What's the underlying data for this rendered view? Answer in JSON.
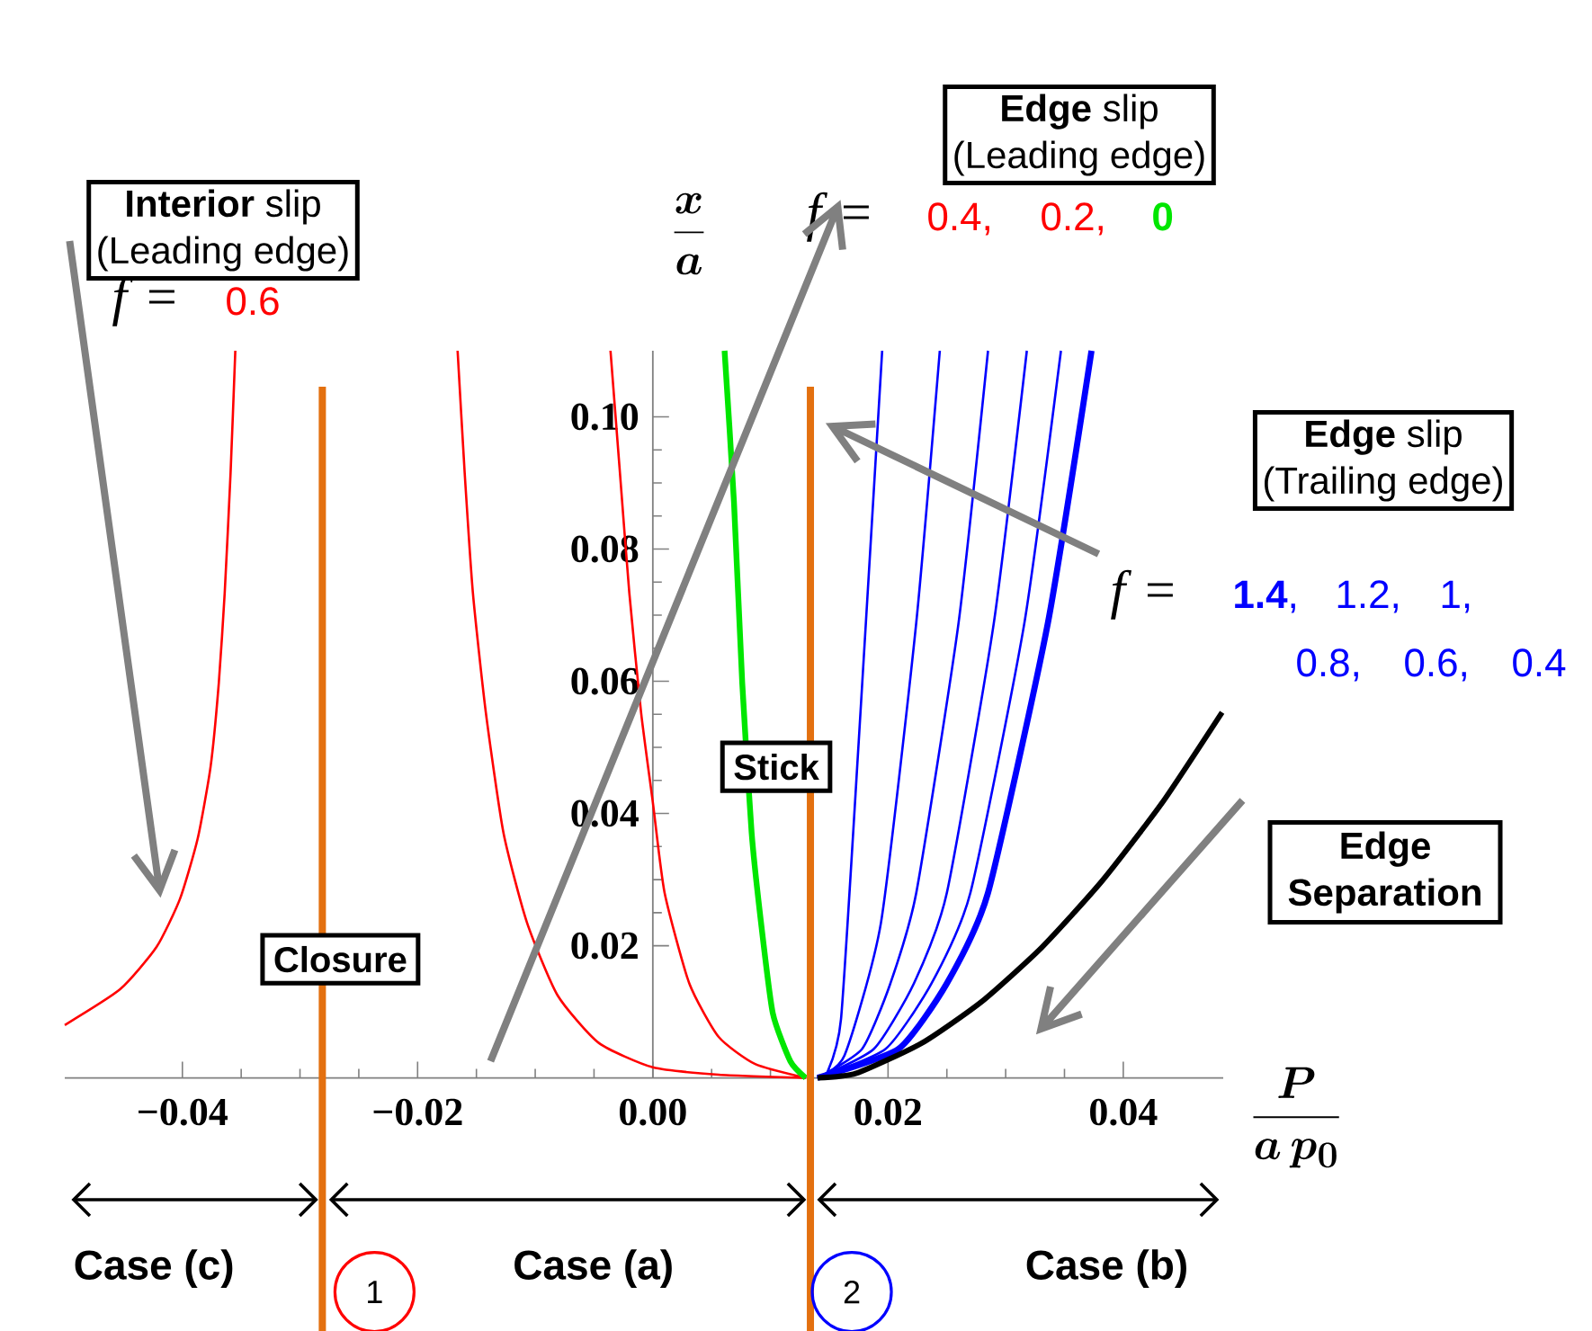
{
  "chart_data": {
    "type": "line",
    "marker": "none",
    "xlabel": "\\frac{\\boldsymbol{P}}{\\boldsymbol{a\\,p_0}}",
    "ylabel": "\\frac{\\boldsymbol{x}}{\\boldsymbol{a}}",
    "xlim": [
      -0.05,
      0.0485
    ],
    "ylim": [
      0,
      0.11
    ],
    "xticks": [
      {
        "value": -0.04,
        "label": "−0.04"
      },
      {
        "value": -0.02,
        "label": "−0.02"
      },
      {
        "value": 0,
        "label": "0.00"
      },
      {
        "value": 0.02,
        "label": "0.02"
      },
      {
        "value": 0.04,
        "label": "0.04"
      }
    ],
    "yticks": [
      {
        "value": 0.02,
        "label": "0.02"
      },
      {
        "value": 0.04,
        "label": "0.04"
      },
      {
        "value": 0.06,
        "label": "0.06"
      },
      {
        "value": 0.08,
        "label": "0.08"
      },
      {
        "value": 0.1,
        "label": "0.10"
      }
    ],
    "series": [
      {
        "name": "0.6",
        "color": "#ff0000",
        "x": [
          -0.05,
          -0.0453,
          -0.0422,
          -0.0402,
          -0.0387,
          -0.0376,
          -0.0369,
          -0.0364,
          -0.0359,
          -0.0355
        ],
        "values": [
          0.008,
          0.0134,
          0.0198,
          0.0271,
          0.0362,
          0.0471,
          0.0598,
          0.0734,
          0.0916,
          0.11
        ]
      },
      {
        "color": "#ff0000",
        "x": [
          -0.0166,
          -0.016,
          -0.0153,
          -0.0142,
          -0.0127,
          -0.0107,
          -0.0081,
          -0.0046,
          0,
          0.0056,
          0.013
        ],
        "values": [
          0.11,
          0.0916,
          0.0734,
          0.0553,
          0.0371,
          0.0235,
          0.0125,
          0.0053,
          0.0016,
          0.0005,
          0
        ]
      },
      {
        "color": "#ff0000",
        "x": [
          -0.0036,
          -0.0028,
          -0.002,
          -0.001,
          0,
          0.001,
          0.0031,
          0.0056,
          0.0087,
          0.013
        ],
        "values": [
          0.11,
          0.0916,
          0.0734,
          0.0553,
          0.0417,
          0.028,
          0.0143,
          0.0062,
          0.0021,
          0
        ]
      },
      {
        "name": "**0**",
        "color": "#00e600",
        "x": [
          0.0061,
          0.0069,
          0.0076,
          0.0084,
          0.0092,
          0.0102,
          0.0117,
          0.013
        ],
        "values": [
          0.11,
          0.0871,
          0.0598,
          0.0371,
          0.0235,
          0.0098,
          0.0025,
          0
        ]
      },
      {
        "color": "#0000ff",
        "x": [
          0.014,
          0.0209,
          0.025,
          0.0285,
          0.0336,
          0.0373
        ],
        "values": [
          0,
          0.0044,
          0.0143,
          0.028,
          0.0689,
          0.11
        ]
      },
      {
        "color": "#0000ff",
        "x": [
          0.014,
          0.0198,
          0.0237,
          0.027,
          0.0316,
          0.0347
        ],
        "values": [
          0,
          0.0044,
          0.0143,
          0.028,
          0.0689,
          0.11
        ]
      },
      {
        "color": "#0000ff",
        "x": [
          0.014,
          0.0188,
          0.0222,
          0.025,
          0.029,
          0.0318
        ],
        "values": [
          0,
          0.0044,
          0.0143,
          0.028,
          0.0689,
          0.11
        ]
      },
      {
        "color": "#0000ff",
        "x": [
          0.014,
          0.0178,
          0.0202,
          0.0224,
          0.026,
          0.0285
        ],
        "values": [
          0,
          0.0044,
          0.0143,
          0.028,
          0.0689,
          0.11
        ]
      },
      {
        "color": "#0000ff",
        "x": [
          0.014,
          0.0163,
          0.0194,
          0.0224,
          0.0244
        ],
        "values": [
          0,
          0.0034,
          0.0235,
          0.0689,
          0.11
        ]
      },
      {
        "color": "#0000ff",
        "x": [
          0.014,
          0.0148,
          0.016,
          0.0175,
          0.0195
        ],
        "values": [
          0,
          0.0007,
          0.0089,
          0.0507,
          0.11
        ]
      },
      {
        "name": "Edge Separation",
        "color": "#000000",
        "x": [
          0.014,
          0.0173,
          0.0229,
          0.028,
          0.0331,
          0.0382,
          0.0433,
          0.0484
        ],
        "values": [
          0,
          0.0007,
          0.0053,
          0.0116,
          0.0198,
          0.0298,
          0.0416,
          0.0553
        ]
      }
    ],
    "ref_lines": [
      {
        "axis": "x",
        "value": -0.0281,
        "label": "Closure",
        "color": "#e3700f"
      },
      {
        "axis": "x",
        "value": 0.0134,
        "label": "Stick",
        "color": "#e3700f"
      }
    ],
    "annotations": [
      "**Interior** slip",
      "(Leading edge)",
      "*f* =",
      "**Edge** slip",
      "(Leading edge)",
      "*f* =",
      "**Edge** slip",
      "(Trailing edge)",
      "*f* =",
      "Case (c)",
      "Case (a)",
      "Case (b)",
      "1",
      "2",
      "0.4,",
      "0.2,",
      "**1.4**,",
      "1.2,",
      "1,",
      "0.8,",
      "0.6,",
      "0.4"
    ]
  }
}
